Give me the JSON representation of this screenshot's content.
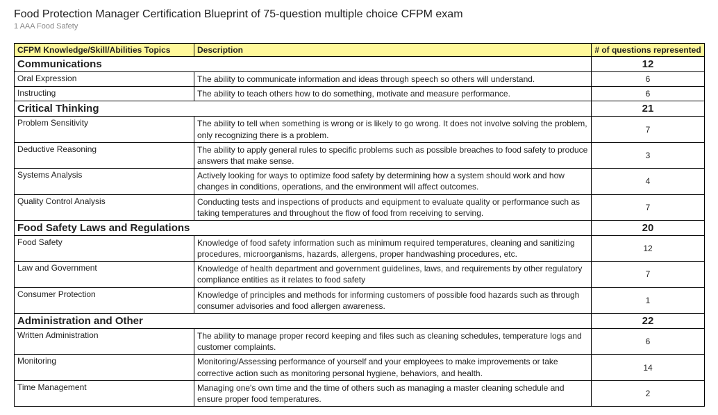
{
  "header": {
    "title": "Food Protection Manager Certification Blueprint of 75-question multiple choice CFPM exam",
    "subtitle": "1 AAA Food Safety"
  },
  "columns": {
    "topic": "CFPM Knowledge/Skill/Abilities Topics",
    "description": "Description",
    "count": "# of questions represented"
  },
  "sections": [
    {
      "title": "Communications",
      "total": "12",
      "rows": [
        {
          "topic": "Oral Expression",
          "desc": "The ability to communicate information and ideas through speech so others will understand.",
          "count": "6"
        },
        {
          "topic": "Instructing",
          "desc": "The ability to teach others how to do something, motivate and measure performance.",
          "count": "6"
        }
      ]
    },
    {
      "title": "Critical Thinking",
      "total": "21",
      "rows": [
        {
          "topic": "Problem Sensitivity",
          "desc": "The ability to tell when something is wrong or is likely to go wrong. It does not involve solving the problem, only recognizing there is a problem.",
          "count": "7"
        },
        {
          "topic": "Deductive Reasoning",
          "desc": "The ability to apply general rules to specific problems such as possible breaches to food safety to produce answers that make sense.",
          "count": "3"
        },
        {
          "topic": "Systems Analysis",
          "desc": "Actively looking for ways to optimize food safety by determining how a system should work and how changes in conditions, operations, and the environment will affect outcomes.",
          "count": "4"
        },
        {
          "topic": "Quality Control Analysis",
          "desc": "Conducting tests and inspections of products and equipment to evaluate quality or performance such as taking temperatures and throughout the flow of food from receiving to serving.",
          "count": "7"
        }
      ]
    },
    {
      "title": "Food Safety Laws and Regulations",
      "total": "20",
      "rows": [
        {
          "topic": "Food Safety",
          "desc": "Knowledge of food safety information such as minimum required temperatures, cleaning and sanitizing procedures, microorganisms, hazards, allergens, proper handwashing procedures, etc.",
          "count": "12"
        },
        {
          "topic": "Law and Government",
          "desc": "Knowledge of health department and government guidelines, laws, and requirements by other regulatory compliance entities as it relates to food safety",
          "count": "7"
        },
        {
          "topic": "Consumer Protection",
          "desc": "Knowledge of principles and methods for informing customers of possible food hazards such as through consumer advisories and food allergen awareness.",
          "count": "1"
        }
      ]
    },
    {
      "title": "Administration and Other",
      "total": "22",
      "rows": [
        {
          "topic": "Written Administration",
          "desc": "The ability to manage proper record keeping and files such as cleaning schedules, temperature logs and customer complaints.",
          "count": "6"
        },
        {
          "topic": "Monitoring",
          "desc": "Monitoring/Assessing performance of yourself and your employees to make improvements or take corrective action such as monitoring personal hygiene, behaviors, and health.",
          "count": "14"
        },
        {
          "topic": "Time Management",
          "desc": "Managing one's own time and the time of others such as managing a master cleaning schedule and ensure proper food temperatures.",
          "count": "2"
        }
      ]
    }
  ]
}
